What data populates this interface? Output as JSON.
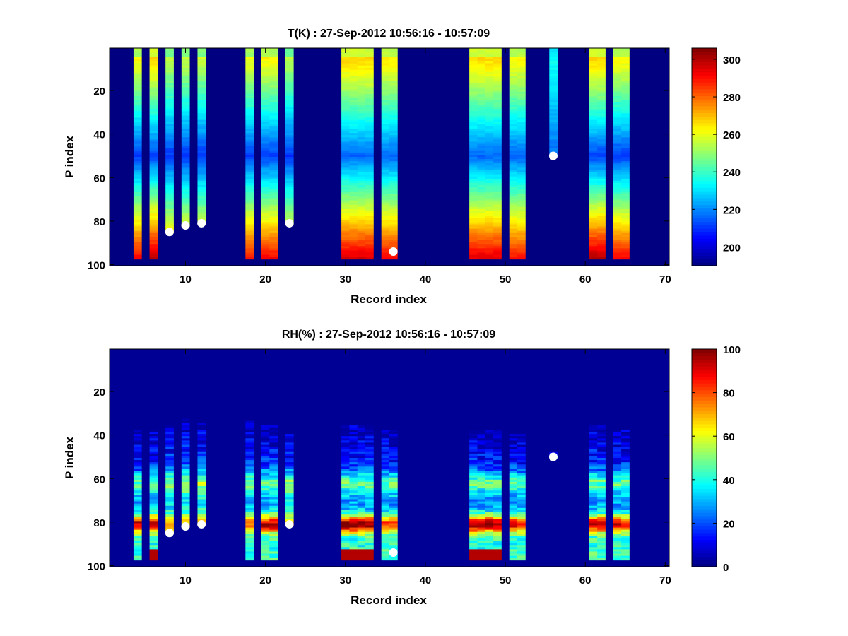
{
  "figure": {
    "background": "#ffffff"
  },
  "chart_data": [
    {
      "type": "heatmap",
      "title": "T(K) : 27-Sep-2012 10:56:16 - 10:57:09",
      "xlabel": "Record index",
      "ylabel": "P index",
      "xlim": [
        0.5,
        70.5
      ],
      "ylim": [
        100.5,
        0.5
      ],
      "xticks": [
        10,
        20,
        30,
        40,
        50,
        60,
        70
      ],
      "yticks": [
        20,
        40,
        60,
        80,
        100
      ],
      "colorbar": {
        "min": 190,
        "max": 306,
        "ticks": [
          200,
          220,
          240,
          260,
          280,
          300
        ],
        "colormap": "jet"
      },
      "background_value": 190,
      "profile_shape": "temperature",
      "columns": [
        {
          "x": [
            4,
            4
          ],
          "bottom": 97,
          "value_range": [
            205,
            292
          ]
        },
        {
          "x": [
            6,
            6
          ],
          "bottom": 97,
          "value_range": [
            205,
            300
          ]
        },
        {
          "x": [
            8,
            8
          ],
          "bottom": 85,
          "value_range": [
            205,
            282
          ]
        },
        {
          "x": [
            10,
            10
          ],
          "bottom": 82,
          "value_range": [
            205,
            282
          ]
        },
        {
          "x": [
            12,
            12
          ],
          "bottom": 81,
          "value_range": [
            205,
            282
          ]
        },
        {
          "x": [
            18,
            18
          ],
          "bottom": 97,
          "value_range": [
            205,
            290
          ]
        },
        {
          "x": [
            20,
            21
          ],
          "bottom": 97,
          "value_range": [
            205,
            292
          ]
        },
        {
          "x": [
            23,
            23
          ],
          "bottom": 81,
          "value_range": [
            205,
            280
          ]
        },
        {
          "x": [
            30,
            33
          ],
          "bottom": 97,
          "value_range": [
            210,
            296
          ]
        },
        {
          "x": [
            35,
            36
          ],
          "bottom": 97,
          "value_range": [
            210,
            292
          ]
        },
        {
          "x": [
            46,
            49
          ],
          "bottom": 97,
          "value_range": [
            210,
            295
          ]
        },
        {
          "x": [
            51,
            52
          ],
          "bottom": 97,
          "value_range": [
            210,
            290
          ]
        },
        {
          "x": [
            56,
            56
          ],
          "bottom": 50,
          "value_range": [
            215,
            245
          ]
        },
        {
          "x": [
            61,
            62
          ],
          "bottom": 97,
          "value_range": [
            205,
            300
          ]
        },
        {
          "x": [
            64,
            65
          ],
          "bottom": 97,
          "value_range": [
            205,
            292
          ]
        }
      ],
      "markers": [
        {
          "x": 8,
          "y": 85
        },
        {
          "x": 10,
          "y": 82
        },
        {
          "x": 12,
          "y": 81
        },
        {
          "x": 23,
          "y": 81
        },
        {
          "x": 36,
          "y": 94
        },
        {
          "x": 56,
          "y": 50
        }
      ]
    },
    {
      "type": "heatmap",
      "title": "RH(%) : 27-Sep-2012 10:56:16 - 10:57:09",
      "xlabel": "Record index",
      "ylabel": "P index",
      "xlim": [
        0.5,
        70.5
      ],
      "ylim": [
        100.5,
        0.5
      ],
      "xticks": [
        10,
        20,
        30,
        40,
        50,
        60,
        70
      ],
      "yticks": [
        20,
        40,
        60,
        80,
        100
      ],
      "colorbar": {
        "min": 0,
        "max": 100,
        "ticks": [
          0,
          20,
          40,
          60,
          80,
          100
        ],
        "colormap": "jet"
      },
      "background_value": 2,
      "profile_shape": "humidity",
      "columns": [
        {
          "x": [
            4,
            4
          ],
          "top": 38,
          "bottom": 97,
          "peak": 95
        },
        {
          "x": [
            6,
            6
          ],
          "top": 38,
          "bottom": 97,
          "peak": 100
        },
        {
          "x": [
            8,
            8
          ],
          "top": 36,
          "bottom": 85,
          "peak": 75
        },
        {
          "x": [
            10,
            10
          ],
          "top": 33,
          "bottom": 82,
          "peak": 70
        },
        {
          "x": [
            12,
            12
          ],
          "top": 35,
          "bottom": 81,
          "peak": 75
        },
        {
          "x": [
            18,
            18
          ],
          "top": 34,
          "bottom": 97,
          "peak": 75
        },
        {
          "x": [
            20,
            21
          ],
          "top": 36,
          "bottom": 97,
          "peak": 95
        },
        {
          "x": [
            23,
            23
          ],
          "top": 40,
          "bottom": 81,
          "peak": 70
        },
        {
          "x": [
            30,
            33
          ],
          "top": 36,
          "bottom": 97,
          "peak": 100
        },
        {
          "x": [
            35,
            36
          ],
          "top": 38,
          "bottom": 97,
          "peak": 85
        },
        {
          "x": [
            46,
            49
          ],
          "top": 38,
          "bottom": 97,
          "peak": 100
        },
        {
          "x": [
            51,
            52
          ],
          "top": 40,
          "bottom": 97,
          "peak": 90
        },
        {
          "x": [
            56,
            56
          ],
          "top": 48,
          "bottom": 50,
          "peak": 40
        },
        {
          "x": [
            61,
            62
          ],
          "top": 36,
          "bottom": 97,
          "peak": 95
        },
        {
          "x": [
            64,
            65
          ],
          "top": 38,
          "bottom": 97,
          "peak": 90
        }
      ],
      "markers": [
        {
          "x": 8,
          "y": 85
        },
        {
          "x": 10,
          "y": 82
        },
        {
          "x": 12,
          "y": 81
        },
        {
          "x": 23,
          "y": 81
        },
        {
          "x": 36,
          "y": 94
        },
        {
          "x": 56,
          "y": 50
        }
      ]
    }
  ]
}
